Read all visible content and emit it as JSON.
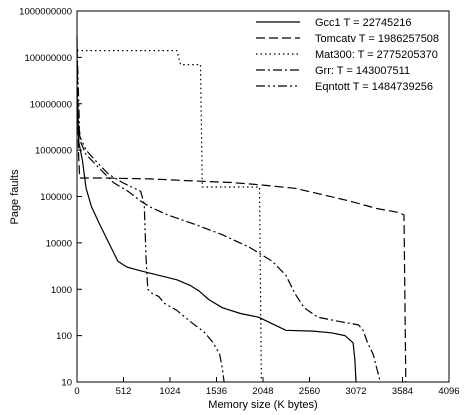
{
  "chart_data": {
    "type": "line",
    "xlabel": "Memory size (K bytes)",
    "ylabel": "Page faults",
    "xlim": [
      0,
      4096
    ],
    "ylim": [
      10,
      1000000000
    ],
    "yscale": "log",
    "xticks": [
      "0",
      "512",
      "1024",
      "1536",
      "2048",
      "2560",
      "3072",
      "3584",
      "4096"
    ],
    "yticks": [
      "10",
      "100",
      "1000",
      "10000",
      "100000",
      "1000000",
      "10000000",
      "100000000",
      "1000000000"
    ],
    "grid": false,
    "legend_position": "top-right",
    "series": [
      {
        "name": "Gcc1 T = 22745216",
        "dash": "solid",
        "color": "#000000",
        "points": [
          [
            0,
            20000000
          ],
          [
            20,
            1500000
          ],
          [
            60,
            600000
          ],
          [
            100,
            150000
          ],
          [
            160,
            60000
          ],
          [
            250,
            25000
          ],
          [
            350,
            10000
          ],
          [
            450,
            4000
          ],
          [
            550,
            3000
          ],
          [
            700,
            2500
          ],
          [
            900,
            2000
          ],
          [
            1100,
            1600
          ],
          [
            1250,
            1200
          ],
          [
            1350,
            900
          ],
          [
            1450,
            600
          ],
          [
            1600,
            400
          ],
          [
            1800,
            300
          ],
          [
            2000,
            250
          ],
          [
            2150,
            180
          ],
          [
            2300,
            130
          ],
          [
            2600,
            125
          ],
          [
            2800,
            115
          ],
          [
            2950,
            100
          ],
          [
            3040,
            70
          ],
          [
            3060,
            30
          ],
          [
            3072,
            10
          ]
        ]
      },
      {
        "name": "Tomcatv T = 1986257508",
        "dash": "dashed",
        "color": "#000000",
        "points": [
          [
            0,
            300000000
          ],
          [
            15,
            1000000
          ],
          [
            30,
            250000
          ],
          [
            300,
            250000
          ],
          [
            800,
            240000
          ],
          [
            1200,
            220000
          ],
          [
            1700,
            200000
          ],
          [
            2000,
            180000
          ],
          [
            2400,
            150000
          ],
          [
            2700,
            110000
          ],
          [
            3000,
            80000
          ],
          [
            3300,
            55000
          ],
          [
            3550,
            45000
          ],
          [
            3600,
            40000
          ],
          [
            3620,
            10
          ]
        ]
      },
      {
        "name": "Mat300: T = 2775205370",
        "dash": "dotted",
        "color": "#000000",
        "points": [
          [
            0,
            140000000
          ],
          [
            1100,
            140000000
          ],
          [
            1140,
            70000000
          ],
          [
            1360,
            70000000
          ],
          [
            1380,
            160000
          ],
          [
            2010,
            160000
          ],
          [
            2030,
            10
          ]
        ]
      },
      {
        "name": "Grr: T = 143007511",
        "dash": "dashdot",
        "color": "#000000",
        "points": [
          [
            0,
            8000000
          ],
          [
            40,
            1500000
          ],
          [
            100,
            800000
          ],
          [
            250,
            400000
          ],
          [
            400,
            200000
          ],
          [
            560,
            130000
          ],
          [
            700,
            80000
          ],
          [
            800,
            60000
          ],
          [
            1000,
            40000
          ],
          [
            1300,
            25000
          ],
          [
            1600,
            15000
          ],
          [
            1900,
            8000
          ],
          [
            2150,
            4000
          ],
          [
            2300,
            2000
          ],
          [
            2400,
            800
          ],
          [
            2500,
            400
          ],
          [
            2650,
            250
          ],
          [
            2900,
            200
          ],
          [
            3100,
            170
          ],
          [
            3150,
            130
          ],
          [
            3200,
            70
          ],
          [
            3260,
            40
          ],
          [
            3300,
            20
          ],
          [
            3340,
            10
          ]
        ]
      },
      {
        "name": "Eqntott T = 1484739256",
        "dash": "dashdotdot",
        "color": "#000000",
        "points": [
          [
            0,
            200000000
          ],
          [
            30,
            2000000
          ],
          [
            100,
            1000000
          ],
          [
            200,
            600000
          ],
          [
            350,
            300000
          ],
          [
            500,
            200000
          ],
          [
            600,
            160000
          ],
          [
            700,
            130000
          ],
          [
            740,
            70000
          ],
          [
            760,
            5000
          ],
          [
            780,
            1000
          ],
          [
            830,
            800
          ],
          [
            900,
            700
          ],
          [
            960,
            500
          ],
          [
            1100,
            350
          ],
          [
            1250,
            200
          ],
          [
            1400,
            120
          ],
          [
            1500,
            70
          ],
          [
            1570,
            40
          ],
          [
            1600,
            20
          ],
          [
            1620,
            10
          ]
        ]
      }
    ]
  }
}
